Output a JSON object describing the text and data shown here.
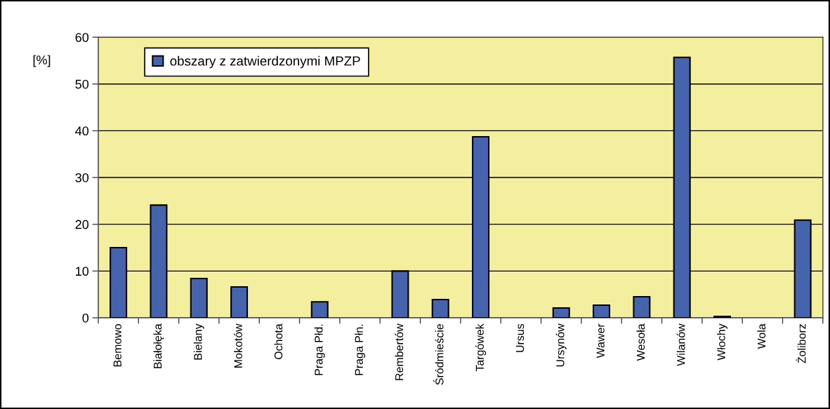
{
  "chart_data": {
    "type": "bar",
    "ylabel": "[%]",
    "categories": [
      "Bemowo",
      "Białołęka",
      "Bielany",
      "Mokotów",
      "Ochota",
      "Praga Płd.",
      "Praga Płn.",
      "Rembertów",
      "Śródmieście",
      "Targówek",
      "Ursus",
      "Ursynów",
      "Wawer",
      "Wesoła",
      "Wilanów",
      "Włochy",
      "Wola",
      "Żoliborz"
    ],
    "series": [
      {
        "name": "obszary z zatwierdzonymi MPZP",
        "color": "#4664ae",
        "values": [
          15.0,
          24.1,
          8.4,
          6.6,
          0,
          3.4,
          0,
          10.0,
          3.9,
          38.7,
          0,
          2.1,
          2.7,
          4.5,
          55.7,
          0.3,
          0,
          20.9
        ]
      }
    ],
    "ylim": [
      0,
      60
    ],
    "yticks": [
      0,
      10,
      20,
      30,
      40,
      50,
      60
    ],
    "grid": "y",
    "legend": "top left"
  }
}
